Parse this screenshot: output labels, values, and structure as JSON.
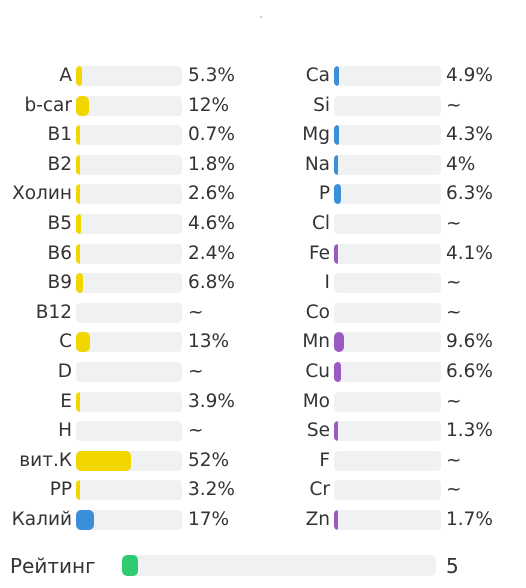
{
  "colors": {
    "yellow": "#f2d600",
    "blue": "#3a8fd8",
    "purple": "#9b59c6",
    "green": "#2ecc71",
    "track": "#f0f1f3"
  },
  "vitamins": [
    {
      "label": "A",
      "value": "5.3%",
      "pct": 5.3,
      "color": "yellow"
    },
    {
      "label": "b-car",
      "value": "12%",
      "pct": 12,
      "color": "yellow"
    },
    {
      "label": "B1",
      "value": "0.7%",
      "pct": 0.7,
      "color": "yellow"
    },
    {
      "label": "B2",
      "value": "1.8%",
      "pct": 1.8,
      "color": "yellow"
    },
    {
      "label": "Холин",
      "value": "2.6%",
      "pct": 2.6,
      "color": "yellow"
    },
    {
      "label": "B5",
      "value": "4.6%",
      "pct": 4.6,
      "color": "yellow"
    },
    {
      "label": "B6",
      "value": "2.4%",
      "pct": 2.4,
      "color": "yellow"
    },
    {
      "label": "B9",
      "value": "6.8%",
      "pct": 6.8,
      "color": "yellow"
    },
    {
      "label": "B12",
      "value": "~",
      "pct": 0,
      "color": "yellow"
    },
    {
      "label": "C",
      "value": "13%",
      "pct": 13,
      "color": "yellow"
    },
    {
      "label": "D",
      "value": "~",
      "pct": 0,
      "color": "yellow"
    },
    {
      "label": "E",
      "value": "3.9%",
      "pct": 3.9,
      "color": "yellow"
    },
    {
      "label": "H",
      "value": "~",
      "pct": 0,
      "color": "yellow"
    },
    {
      "label": "вит.К",
      "value": "52%",
      "pct": 52,
      "color": "yellow"
    },
    {
      "label": "PP",
      "value": "3.2%",
      "pct": 3.2,
      "color": "yellow"
    },
    {
      "label": "Калий",
      "value": "17%",
      "pct": 17,
      "color": "blue"
    }
  ],
  "minerals": [
    {
      "label": "Ca",
      "value": "4.9%",
      "pct": 4.9,
      "color": "blue"
    },
    {
      "label": "Si",
      "value": "~",
      "pct": 0,
      "color": "blue"
    },
    {
      "label": "Mg",
      "value": "4.3%",
      "pct": 4.3,
      "color": "blue"
    },
    {
      "label": "Na",
      "value": "4%",
      "pct": 4,
      "color": "blue"
    },
    {
      "label": "P",
      "value": "6.3%",
      "pct": 6.3,
      "color": "blue"
    },
    {
      "label": "Cl",
      "value": "~",
      "pct": 0,
      "color": "blue"
    },
    {
      "label": "Fe",
      "value": "4.1%",
      "pct": 4.1,
      "color": "purple"
    },
    {
      "label": "I",
      "value": "~",
      "pct": 0,
      "color": "purple"
    },
    {
      "label": "Co",
      "value": "~",
      "pct": 0,
      "color": "purple"
    },
    {
      "label": "Mn",
      "value": "9.6%",
      "pct": 9.6,
      "color": "purple"
    },
    {
      "label": "Cu",
      "value": "6.6%",
      "pct": 6.6,
      "color": "purple"
    },
    {
      "label": "Mo",
      "value": "~",
      "pct": 0,
      "color": "purple"
    },
    {
      "label": "Se",
      "value": "1.3%",
      "pct": 1.3,
      "color": "purple"
    },
    {
      "label": "F",
      "value": "~",
      "pct": 0,
      "color": "purple"
    },
    {
      "label": "Cr",
      "value": "~",
      "pct": 0,
      "color": "purple"
    },
    {
      "label": "Zn",
      "value": "1.7%",
      "pct": 1.7,
      "color": "purple"
    }
  ],
  "rating": {
    "label": "Рейтинг",
    "value": "5",
    "fraction": 0.05,
    "color": "green"
  }
}
